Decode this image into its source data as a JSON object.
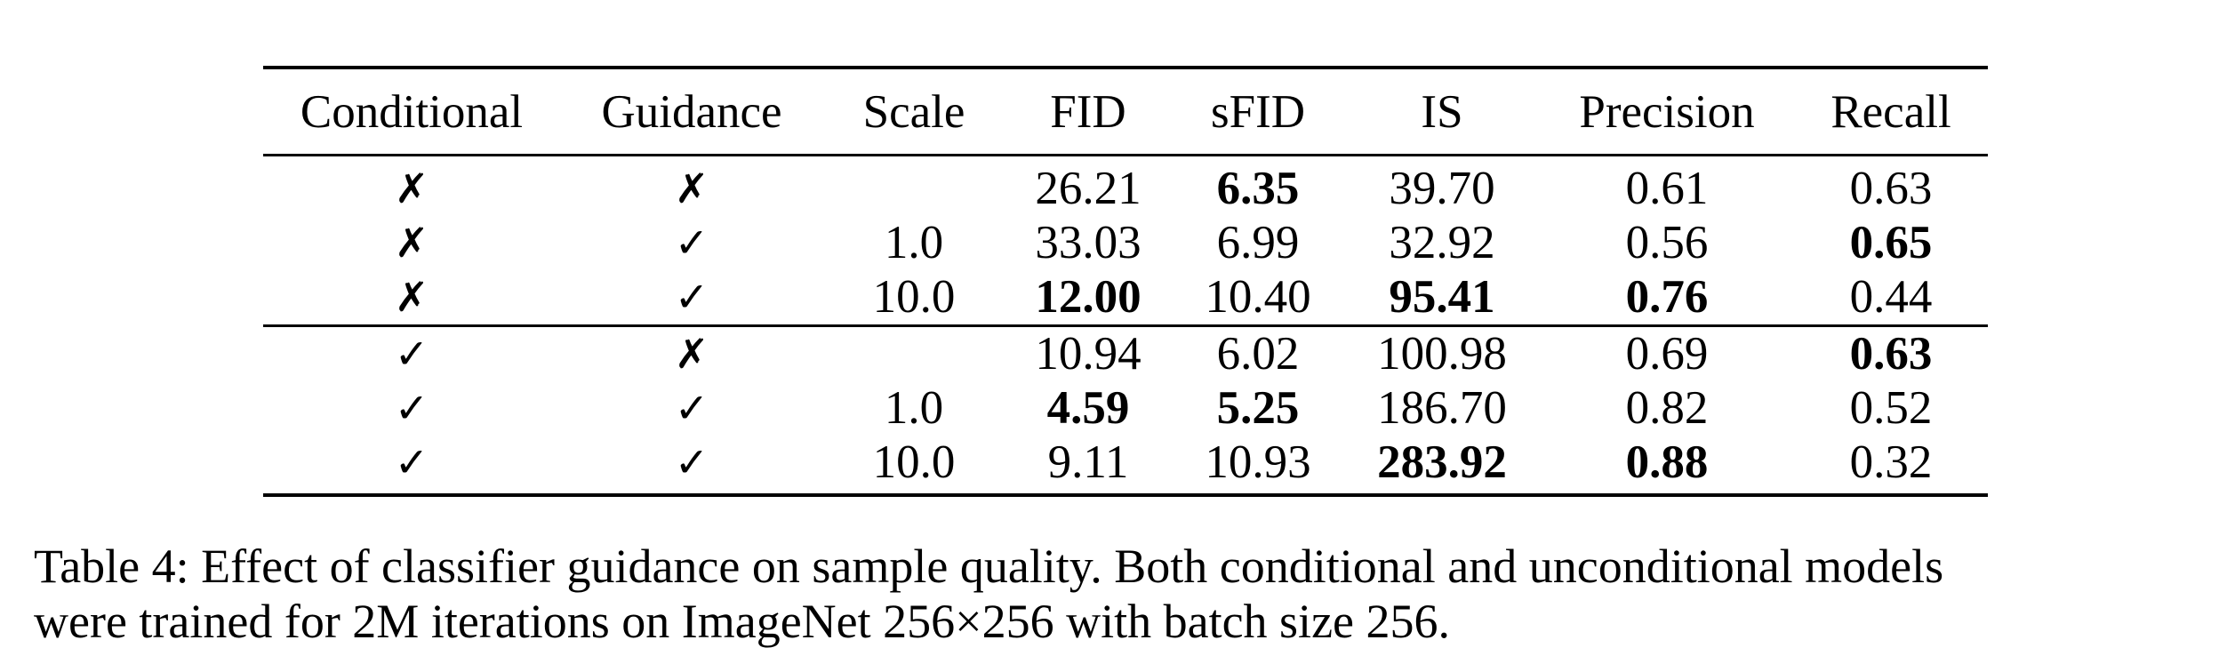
{
  "table": {
    "headers": [
      "Conditional",
      "Guidance",
      "Scale",
      "FID",
      "sFID",
      "IS",
      "Precision",
      "Recall"
    ],
    "rows": [
      {
        "conditional": "✗",
        "guidance": "✗",
        "scale": "",
        "fid": "26.21",
        "sfid": "6.35",
        "is": "39.70",
        "precision": "0.61",
        "recall": "0.63"
      },
      {
        "conditional": "✗",
        "guidance": "✓",
        "scale": "1.0",
        "fid": "33.03",
        "sfid": "6.99",
        "is": "32.92",
        "precision": "0.56",
        "recall": "0.65"
      },
      {
        "conditional": "✗",
        "guidance": "✓",
        "scale": "10.0",
        "fid": "12.00",
        "sfid": "10.40",
        "is": "95.41",
        "precision": "0.76",
        "recall": "0.44"
      },
      {
        "conditional": "✓",
        "guidance": "✗",
        "scale": "",
        "fid": "10.94",
        "sfid": "6.02",
        "is": "100.98",
        "precision": "0.69",
        "recall": "0.63"
      },
      {
        "conditional": "✓",
        "guidance": "✓",
        "scale": "1.0",
        "fid": "4.59",
        "sfid": "5.25",
        "is": "186.70",
        "precision": "0.82",
        "recall": "0.52"
      },
      {
        "conditional": "✓",
        "guidance": "✓",
        "scale": "10.0",
        "fid": "9.11",
        "sfid": "10.93",
        "is": "283.92",
        "precision": "0.88",
        "recall": "0.32"
      }
    ]
  },
  "caption": {
    "line1": "Table 4: Effect of classifier guidance on sample quality. Both conditional and unconditional models",
    "line2": "were trained for 2M iterations on ImageNet 256×256 with batch size 256."
  }
}
